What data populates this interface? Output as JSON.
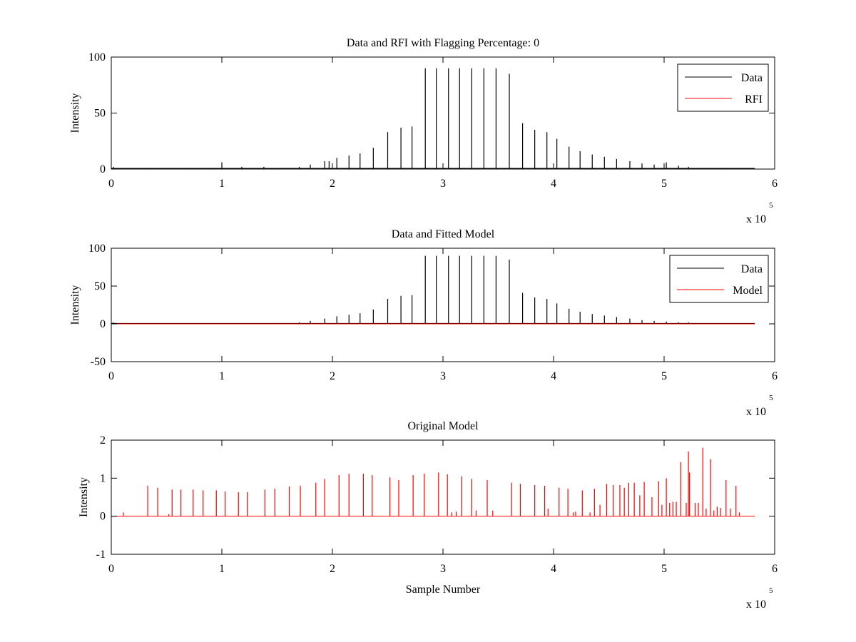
{
  "figure": {
    "exponent_label": "x 10",
    "exponent_power": "5"
  },
  "chart_data": [
    {
      "type": "line",
      "title": "Data and RFI with Flagging Percentage: 0",
      "xlabel": "",
      "ylabel": "Intensity",
      "xlim": [
        0,
        6
      ],
      "ylim": [
        0,
        100
      ],
      "x_unit_multiplier": 100000,
      "xticks": [
        "0",
        "1",
        "2",
        "3",
        "4",
        "5",
        "6"
      ],
      "yticks": [
        "0",
        "50",
        "100"
      ],
      "yvals": [
        0,
        50,
        100
      ],
      "grid": false,
      "legend_position": "top-right",
      "series": [
        {
          "name": "Data",
          "color": "#000000",
          "style": "spikes",
          "baseline": 0.6,
          "spikes": [
            [
              0.02,
              2
            ],
            [
              0.31,
              1
            ],
            [
              0.52,
              1
            ],
            [
              0.72,
              1
            ],
            [
              0.88,
              1
            ],
            [
              1.0,
              6
            ],
            [
              1.18,
              2
            ],
            [
              1.28,
              1
            ],
            [
              1.38,
              2
            ],
            [
              1.5,
              1
            ],
            [
              1.6,
              1
            ],
            [
              1.7,
              2
            ],
            [
              1.8,
              4
            ],
            [
              1.93,
              7
            ],
            [
              1.97,
              7
            ],
            [
              2.04,
              10
            ],
            [
              2.15,
              12
            ],
            [
              2.25,
              14
            ],
            [
              2.37,
              19
            ],
            [
              2.5,
              33
            ],
            [
              2.62,
              37
            ],
            [
              2.72,
              38
            ],
            [
              2.84,
              90
            ],
            [
              2.94,
              90
            ],
            [
              3.05,
              90
            ],
            [
              3.15,
              90
            ],
            [
              3.26,
              90
            ],
            [
              3.37,
              90
            ],
            [
              3.48,
              90
            ],
            [
              3.6,
              85
            ],
            [
              3.72,
              41
            ],
            [
              3.83,
              35
            ],
            [
              3.94,
              33
            ],
            [
              4.03,
              27
            ],
            [
              4.14,
              20
            ],
            [
              4.24,
              16
            ],
            [
              4.35,
              13
            ],
            [
              4.46,
              11
            ],
            [
              4.57,
              9
            ],
            [
              4.69,
              7
            ],
            [
              4.8,
              5
            ],
            [
              4.91,
              4
            ],
            [
              5.02,
              6
            ],
            [
              5.13,
              3
            ],
            [
              5.22,
              2
            ],
            [
              5.33,
              1
            ],
            [
              5.45,
              1
            ],
            [
              5.56,
              1
            ],
            [
              5.65,
              1
            ]
          ]
        },
        {
          "name": "RFI",
          "color": "#ff0000",
          "style": "line",
          "baseline": 0,
          "spikes": []
        }
      ]
    },
    {
      "type": "line",
      "title": "Data and Fitted Model",
      "xlabel": "",
      "ylabel": "Intensity",
      "xlim": [
        0,
        6
      ],
      "ylim": [
        -50,
        100
      ],
      "x_unit_multiplier": 100000,
      "xticks": [
        "0",
        "1",
        "2",
        "3",
        "4",
        "5",
        "6"
      ],
      "yticks": [
        "-50",
        "0",
        "50",
        "100"
      ],
      "yvals": [
        -50,
        0,
        50,
        100
      ],
      "grid": false,
      "legend_position": "top-right",
      "series": [
        {
          "name": "Data",
          "color": "#000000",
          "style": "spikes",
          "baseline": 0.6,
          "spikes": [
            [
              0.02,
              2
            ],
            [
              0.18,
              1
            ],
            [
              1.5,
              1
            ],
            [
              1.6,
              1
            ],
            [
              1.7,
              2
            ],
            [
              1.8,
              4
            ],
            [
              1.93,
              7
            ],
            [
              2.04,
              10
            ],
            [
              2.15,
              12
            ],
            [
              2.25,
              14
            ],
            [
              2.37,
              19
            ],
            [
              2.5,
              33
            ],
            [
              2.62,
              37
            ],
            [
              2.72,
              38
            ],
            [
              2.84,
              90
            ],
            [
              2.94,
              90
            ],
            [
              3.05,
              90
            ],
            [
              3.15,
              90
            ],
            [
              3.26,
              90
            ],
            [
              3.37,
              90
            ],
            [
              3.48,
              90
            ],
            [
              3.6,
              85
            ],
            [
              3.72,
              41
            ],
            [
              3.83,
              35
            ],
            [
              3.94,
              33
            ],
            [
              4.03,
              27
            ],
            [
              4.14,
              20
            ],
            [
              4.24,
              16
            ],
            [
              4.35,
              13
            ],
            [
              4.46,
              11
            ],
            [
              4.57,
              9
            ],
            [
              4.69,
              7
            ],
            [
              4.8,
              5
            ],
            [
              4.91,
              4
            ],
            [
              5.02,
              3
            ],
            [
              5.13,
              2
            ],
            [
              5.22,
              2
            ]
          ]
        },
        {
          "name": "Model",
          "color": "#ff0000",
          "style": "line",
          "baseline": 0,
          "spikes": []
        }
      ]
    },
    {
      "type": "line",
      "title": "Original Model",
      "xlabel": "Sample Number",
      "ylabel": "Intensity",
      "xlim": [
        0,
        6
      ],
      "ylim": [
        -1,
        2
      ],
      "x_unit_multiplier": 100000,
      "xticks": [
        "0",
        "1",
        "2",
        "3",
        "4",
        "5",
        "6"
      ],
      "yticks": [
        "-1",
        "0",
        "1",
        "2"
      ],
      "yvals": [
        -1,
        0,
        1,
        2
      ],
      "grid": false,
      "legend_position": "none",
      "series": [
        {
          "name": "",
          "color": "#ff0000",
          "style": "spikes",
          "baseline": 0,
          "spikes": [
            [
              0.11,
              0.1
            ],
            [
              0.33,
              0.8
            ],
            [
              0.42,
              0.75
            ],
            [
              0.52,
              0.05
            ],
            [
              0.55,
              0.7
            ],
            [
              0.63,
              0.7
            ],
            [
              0.74,
              0.7
            ],
            [
              0.83,
              0.68
            ],
            [
              0.95,
              0.68
            ],
            [
              1.03,
              0.65
            ],
            [
              1.15,
              0.63
            ],
            [
              1.23,
              0.63
            ],
            [
              1.39,
              0.7
            ],
            [
              1.48,
              0.72
            ],
            [
              1.61,
              0.78
            ],
            [
              1.71,
              0.8
            ],
            [
              1.85,
              0.88
            ],
            [
              1.93,
              0.98
            ],
            [
              2.06,
              1.08
            ],
            [
              2.15,
              1.12
            ],
            [
              2.28,
              1.12
            ],
            [
              2.36,
              1.08
            ],
            [
              2.52,
              1.02
            ],
            [
              2.6,
              0.95
            ],
            [
              2.73,
              1.08
            ],
            [
              2.83,
              1.12
            ],
            [
              2.96,
              1.15
            ],
            [
              3.04,
              1.1
            ],
            [
              3.08,
              0.1
            ],
            [
              3.12,
              0.12
            ],
            [
              3.17,
              1.05
            ],
            [
              3.26,
              0.98
            ],
            [
              3.3,
              0.15
            ],
            [
              3.4,
              0.95
            ],
            [
              3.45,
              0.15
            ],
            [
              3.62,
              0.88
            ],
            [
              3.7,
              0.85
            ],
            [
              3.83,
              0.82
            ],
            [
              3.92,
              0.8
            ],
            [
              3.95,
              0.2
            ],
            [
              4.05,
              0.75
            ],
            [
              4.13,
              0.72
            ],
            [
              4.18,
              0.1
            ],
            [
              4.2,
              0.12
            ],
            [
              4.26,
              0.68
            ],
            [
              4.33,
              0.1
            ],
            [
              4.37,
              0.72
            ],
            [
              4.42,
              0.3
            ],
            [
              4.48,
              0.85
            ],
            [
              4.54,
              0.82
            ],
            [
              4.6,
              0.82
            ],
            [
              4.64,
              0.75
            ],
            [
              4.68,
              0.88
            ],
            [
              4.73,
              0.88
            ],
            [
              4.78,
              0.55
            ],
            [
              4.82,
              0.9
            ],
            [
              4.89,
              0.5
            ],
            [
              4.95,
              0.92
            ],
            [
              4.98,
              0.3
            ],
            [
              5.02,
              1.0
            ],
            [
              5.05,
              0.35
            ],
            [
              5.08,
              0.38
            ],
            [
              5.11,
              0.38
            ],
            [
              5.15,
              1.42
            ],
            [
              5.2,
              0.35
            ],
            [
              5.22,
              1.7
            ],
            [
              5.23,
              1.15
            ],
            [
              5.28,
              0.35
            ],
            [
              5.31,
              0.35
            ],
            [
              5.35,
              1.8
            ],
            [
              5.38,
              0.2
            ],
            [
              5.42,
              1.5
            ],
            [
              5.45,
              0.15
            ],
            [
              5.48,
              0.25
            ],
            [
              5.51,
              0.22
            ],
            [
              5.56,
              0.95
            ],
            [
              5.6,
              0.2
            ],
            [
              5.65,
              0.8
            ],
            [
              5.68,
              0.1
            ]
          ]
        }
      ]
    }
  ]
}
